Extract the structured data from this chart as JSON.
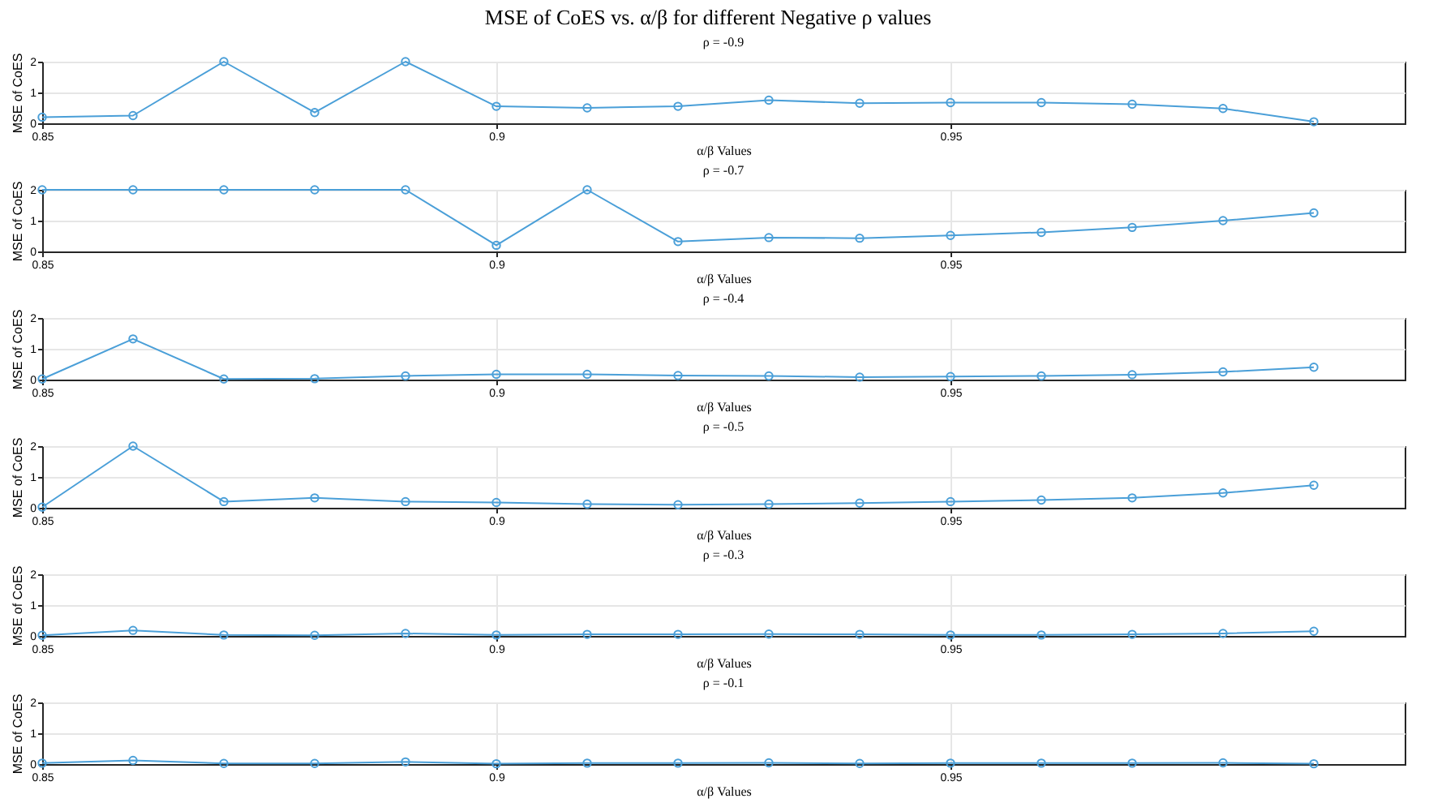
{
  "chart_data": [
    {
      "type": "line",
      "title": "MSE of CoES vs. α/β for different Negative ρ values",
      "subtitle": "ρ = -0.9",
      "xlabel": "α/β Values",
      "ylabel": "MSE of CoES",
      "x": [
        0.85,
        0.86,
        0.87,
        0.88,
        0.89,
        0.9,
        0.91,
        0.92,
        0.93,
        0.94,
        0.95,
        0.96,
        0.97,
        0.98,
        0.99
      ],
      "series": [
        {
          "color": "#4a9fd8",
          "values": [
            0.2,
            0.25,
            2,
            0.35,
            2,
            0.55,
            0.5,
            0.55,
            0.75,
            0.65,
            0.67,
            0.67,
            0.62,
            0.48,
            0.05
          ]
        }
      ],
      "xlim": [
        0.85,
        1.0
      ],
      "ylim": [
        0,
        2
      ],
      "xticks": [
        0.85,
        0.9,
        0.95
      ],
      "yticks": [
        0,
        1,
        2
      ],
      "grid": true,
      "marker": "circle",
      "line_style": "solid"
    },
    {
      "type": "line",
      "subtitle": "ρ = -0.7",
      "xlabel": "α/β Values",
      "ylabel": "MSE of CoES",
      "x": [
        0.85,
        0.86,
        0.87,
        0.88,
        0.89,
        0.9,
        0.91,
        0.92,
        0.93,
        0.94,
        0.95,
        0.96,
        0.97,
        0.98,
        0.99
      ],
      "series": [
        {
          "color": "#4a9fd8",
          "values": [
            2,
            2,
            2,
            2,
            2,
            0.2,
            2,
            0.32,
            0.45,
            0.43,
            0.52,
            0.62,
            0.78,
            1.0,
            1.25
          ]
        }
      ],
      "xlim": [
        0.85,
        1.0
      ],
      "ylim": [
        0,
        2
      ],
      "xticks": [
        0.85,
        0.9,
        0.95
      ],
      "yticks": [
        0,
        1,
        2
      ],
      "grid": true,
      "marker": "circle",
      "line_style": "solid"
    },
    {
      "type": "line",
      "subtitle": "ρ = -0.4",
      "xlabel": "α/β Values",
      "ylabel": "MSE of CoES",
      "x": [
        0.85,
        0.86,
        0.87,
        0.88,
        0.89,
        0.9,
        0.91,
        0.92,
        0.93,
        0.94,
        0.95,
        0.96,
        0.97,
        0.98,
        0.99
      ],
      "series": [
        {
          "color": "#4a9fd8",
          "values": [
            0.02,
            1.32,
            0.02,
            0.03,
            0.12,
            0.17,
            0.17,
            0.13,
            0.12,
            0.08,
            0.1,
            0.12,
            0.16,
            0.25,
            0.4
          ]
        }
      ],
      "xlim": [
        0.85,
        1.0
      ],
      "ylim": [
        0,
        2
      ],
      "xticks": [
        0.85,
        0.9,
        0.95
      ],
      "yticks": [
        0,
        1,
        2
      ],
      "grid": true,
      "marker": "circle",
      "line_style": "solid"
    },
    {
      "type": "line",
      "subtitle": "ρ = -0.5",
      "xlabel": "α/β Values",
      "ylabel": "MSE of CoES",
      "x": [
        0.85,
        0.86,
        0.87,
        0.88,
        0.89,
        0.9,
        0.91,
        0.92,
        0.93,
        0.94,
        0.95,
        0.96,
        0.97,
        0.98,
        0.99
      ],
      "series": [
        {
          "color": "#4a9fd8",
          "values": [
            0.02,
            2,
            0.2,
            0.32,
            0.2,
            0.17,
            0.12,
            0.1,
            0.12,
            0.15,
            0.2,
            0.25,
            0.32,
            0.48,
            0.73
          ]
        }
      ],
      "xlim": [
        0.85,
        1.0
      ],
      "ylim": [
        0,
        2
      ],
      "xticks": [
        0.85,
        0.9,
        0.95
      ],
      "yticks": [
        0,
        1,
        2
      ],
      "grid": true,
      "marker": "circle",
      "line_style": "solid"
    },
    {
      "type": "line",
      "subtitle": "ρ = -0.3",
      "xlabel": "α/β Values",
      "ylabel": "MSE of CoES",
      "x": [
        0.85,
        0.86,
        0.87,
        0.88,
        0.89,
        0.9,
        0.91,
        0.92,
        0.93,
        0.94,
        0.95,
        0.96,
        0.97,
        0.98,
        0.99
      ],
      "series": [
        {
          "color": "#4a9fd8",
          "values": [
            0.02,
            0.18,
            0.03,
            0.02,
            0.08,
            0.03,
            0.05,
            0.05,
            0.06,
            0.05,
            0.03,
            0.03,
            0.05,
            0.08,
            0.15
          ]
        }
      ],
      "xlim": [
        0.85,
        1.0
      ],
      "ylim": [
        0,
        2
      ],
      "xticks": [
        0.85,
        0.9,
        0.95
      ],
      "yticks": [
        0,
        1,
        2
      ],
      "grid": true,
      "marker": "circle",
      "line_style": "solid"
    },
    {
      "type": "line",
      "subtitle": "ρ = -0.1",
      "xlabel": "α/β Values",
      "ylabel": "MSE of CoES",
      "x": [
        0.85,
        0.86,
        0.87,
        0.88,
        0.89,
        0.9,
        0.91,
        0.92,
        0.93,
        0.94,
        0.95,
        0.96,
        0.97,
        0.98,
        0.99
      ],
      "series": [
        {
          "color": "#4a9fd8",
          "values": [
            0.03,
            0.12,
            0.02,
            0.02,
            0.07,
            0.01,
            0.03,
            0.03,
            0.04,
            0.02,
            0.03,
            0.03,
            0.03,
            0.04,
            0.01
          ]
        }
      ],
      "xlim": [
        0.85,
        1.0
      ],
      "ylim": [
        0,
        2
      ],
      "xticks": [
        0.85,
        0.9,
        0.95
      ],
      "yticks": [
        0,
        1,
        2
      ],
      "grid": true,
      "marker": "circle",
      "line_style": "solid"
    }
  ]
}
